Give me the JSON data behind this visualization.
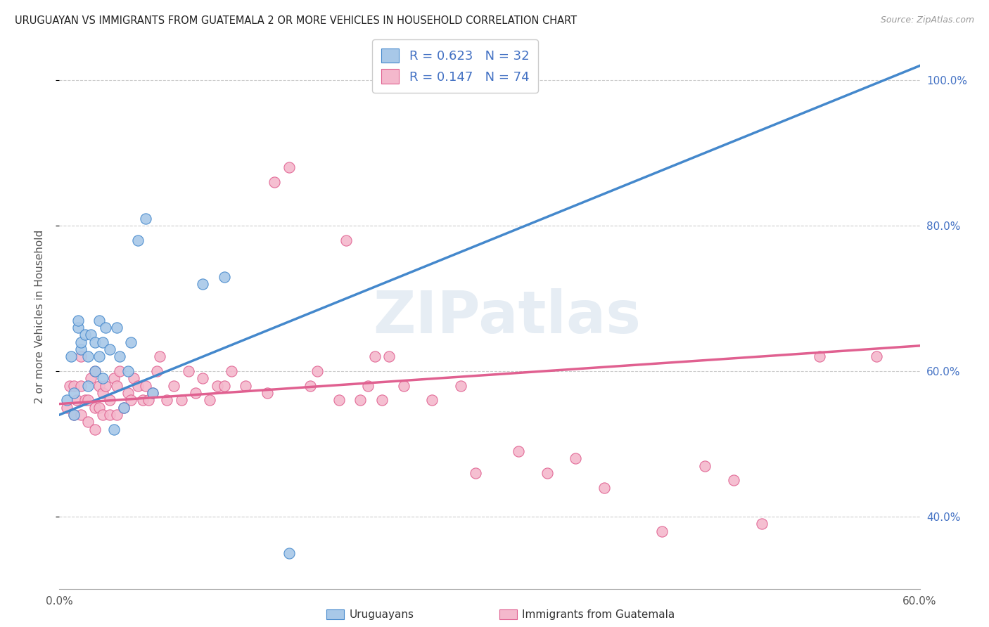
{
  "title": "URUGUAYAN VS IMMIGRANTS FROM GUATEMALA 2 OR MORE VEHICLES IN HOUSEHOLD CORRELATION CHART",
  "source": "Source: ZipAtlas.com",
  "ylabel": "2 or more Vehicles in Household",
  "legend_label1": "Uruguayans",
  "legend_label2": "Immigrants from Guatemala",
  "R1": 0.623,
  "N1": 32,
  "R2": 0.147,
  "N2": 74,
  "blue_color": "#a8c8e8",
  "pink_color": "#f4b8cc",
  "blue_line_color": "#4488cc",
  "pink_line_color": "#e06090",
  "watermark_text": "ZIPatlas",
  "blue_scatter_x": [
    0.005,
    0.008,
    0.01,
    0.01,
    0.013,
    0.013,
    0.015,
    0.015,
    0.018,
    0.02,
    0.02,
    0.022,
    0.025,
    0.025,
    0.028,
    0.028,
    0.03,
    0.03,
    0.032,
    0.035,
    0.038,
    0.04,
    0.042,
    0.045,
    0.048,
    0.05,
    0.055,
    0.06,
    0.065,
    0.1,
    0.115,
    0.16
  ],
  "blue_scatter_y": [
    0.56,
    0.62,
    0.54,
    0.57,
    0.66,
    0.67,
    0.63,
    0.64,
    0.65,
    0.58,
    0.62,
    0.65,
    0.6,
    0.64,
    0.62,
    0.67,
    0.59,
    0.64,
    0.66,
    0.63,
    0.52,
    0.66,
    0.62,
    0.55,
    0.6,
    0.64,
    0.78,
    0.81,
    0.57,
    0.72,
    0.73,
    0.35
  ],
  "pink_scatter_x": [
    0.005,
    0.007,
    0.01,
    0.01,
    0.012,
    0.015,
    0.015,
    0.015,
    0.018,
    0.02,
    0.02,
    0.022,
    0.025,
    0.025,
    0.025,
    0.028,
    0.028,
    0.03,
    0.03,
    0.032,
    0.035,
    0.035,
    0.038,
    0.04,
    0.04,
    0.042,
    0.045,
    0.048,
    0.05,
    0.052,
    0.055,
    0.058,
    0.06,
    0.062,
    0.065,
    0.068,
    0.07,
    0.075,
    0.08,
    0.085,
    0.09,
    0.095,
    0.1,
    0.105,
    0.11,
    0.115,
    0.12,
    0.13,
    0.145,
    0.15,
    0.16,
    0.175,
    0.18,
    0.195,
    0.2,
    0.21,
    0.215,
    0.22,
    0.225,
    0.23,
    0.24,
    0.26,
    0.28,
    0.29,
    0.32,
    0.34,
    0.36,
    0.38,
    0.42,
    0.45,
    0.47,
    0.49,
    0.53,
    0.57
  ],
  "pink_scatter_y": [
    0.55,
    0.58,
    0.54,
    0.58,
    0.56,
    0.54,
    0.58,
    0.62,
    0.56,
    0.53,
    0.56,
    0.59,
    0.52,
    0.55,
    0.6,
    0.55,
    0.58,
    0.54,
    0.57,
    0.58,
    0.54,
    0.56,
    0.59,
    0.54,
    0.58,
    0.6,
    0.55,
    0.57,
    0.56,
    0.59,
    0.58,
    0.56,
    0.58,
    0.56,
    0.57,
    0.6,
    0.62,
    0.56,
    0.58,
    0.56,
    0.6,
    0.57,
    0.59,
    0.56,
    0.58,
    0.58,
    0.6,
    0.58,
    0.57,
    0.86,
    0.88,
    0.58,
    0.6,
    0.56,
    0.78,
    0.56,
    0.58,
    0.62,
    0.56,
    0.62,
    0.58,
    0.56,
    0.58,
    0.46,
    0.49,
    0.46,
    0.48,
    0.44,
    0.38,
    0.47,
    0.45,
    0.39,
    0.62,
    0.62
  ],
  "xlim": [
    0.0,
    0.6
  ],
  "ylim": [
    0.3,
    1.05
  ],
  "ytick_vals": [
    0.4,
    0.6,
    0.8,
    1.0
  ],
  "ytick_labels": [
    "40.0%",
    "60.0%",
    "80.0%",
    "100.0%"
  ],
  "xtick_vals": [
    0.0,
    0.1,
    0.2,
    0.3,
    0.4,
    0.5,
    0.6
  ],
  "xtick_labels": [
    "0.0%",
    "",
    "",
    "",
    "",
    "",
    "60.0%"
  ],
  "blue_line_x": [
    0.0,
    0.6
  ],
  "blue_line_y": [
    0.54,
    1.02
  ],
  "pink_line_x": [
    0.0,
    0.6
  ],
  "pink_line_y": [
    0.555,
    0.635
  ]
}
